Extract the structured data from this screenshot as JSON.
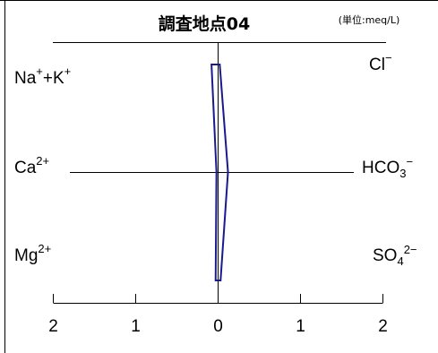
{
  "chart_data": {
    "type": "line",
    "chart_kind": "Stiff diagram",
    "title": "調査地点04",
    "unit": "(単位:meq/L)",
    "xlim": [
      -2,
      2
    ],
    "x_ticks": [
      -2,
      -1,
      0,
      1,
      2
    ],
    "x_tick_labels": [
      "2",
      "1",
      "0",
      "1",
      "2"
    ],
    "rows": [
      {
        "left": {
          "base": "Na",
          "sup1": "+",
          "mid": "+K",
          "sup2": "+",
          "sub": ""
        },
        "right": {
          "base": "Cl",
          "sup1": "−",
          "mid": "",
          "sup2": "",
          "sub": ""
        }
      },
      {
        "left": {
          "base": "Ca",
          "sup1": "2+",
          "mid": "",
          "sup2": "",
          "sub": ""
        },
        "right": {
          "base": "HCO",
          "sub": "3",
          "sup1": "−",
          "mid": "",
          "sup2": ""
        }
      },
      {
        "left": {
          "base": "Mg",
          "sup1": "2+",
          "mid": "",
          "sup2": "",
          "sub": ""
        },
        "right": {
          "base": "SO",
          "sub": "4",
          "sup1": "2−",
          "mid": "",
          "sup2": ""
        }
      }
    ],
    "series": [
      {
        "cations": [
          0.08,
          0.02,
          0.03
        ],
        "anions": [
          0.02,
          0.12,
          0.03
        ],
        "color": "#1a1a8c"
      }
    ],
    "grid": false
  }
}
